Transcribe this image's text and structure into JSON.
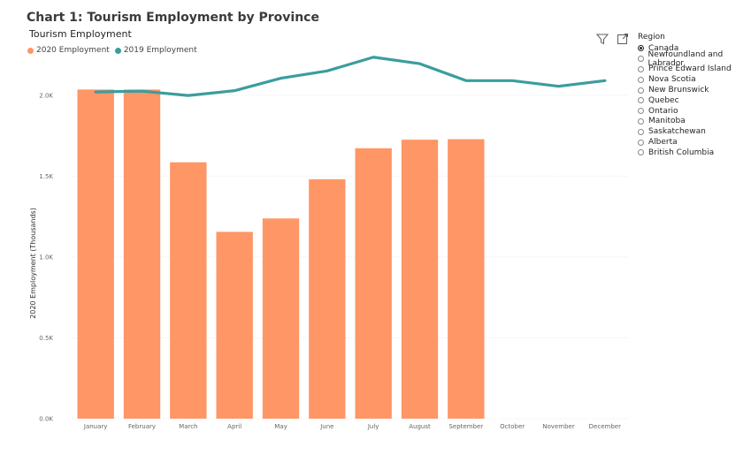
{
  "page": {
    "title": "Chart 1: Tourism Employment by Province"
  },
  "visual": {
    "title": "Tourism Employment"
  },
  "legend": {
    "items": [
      {
        "label": "2020 Employment",
        "color": "#fe9666"
      },
      {
        "label": "2019 Employment",
        "color": "#3b9d9d"
      }
    ]
  },
  "toolbar": {
    "icons": [
      "filter-icon",
      "focus-mode-icon"
    ]
  },
  "slicer": {
    "title": "Region",
    "items": [
      {
        "label": "Canada",
        "checked": true
      },
      {
        "label": "Newfoundland and Labrador",
        "checked": false
      },
      {
        "label": "Prince Edward Island",
        "checked": false
      },
      {
        "label": "Nova Scotia",
        "checked": false
      },
      {
        "label": "New Brunswick",
        "checked": false
      },
      {
        "label": "Quebec",
        "checked": false
      },
      {
        "label": "Ontario",
        "checked": false
      },
      {
        "label": "Manitoba",
        "checked": false
      },
      {
        "label": "Saskatchewan",
        "checked": false
      },
      {
        "label": "Alberta",
        "checked": false
      },
      {
        "label": "British Columbia",
        "checked": false
      }
    ]
  },
  "chart_data": {
    "type": "bar",
    "categories": [
      "January",
      "February",
      "March",
      "April",
      "May",
      "June",
      "July",
      "August",
      "September",
      "October",
      "November",
      "December"
    ],
    "series": [
      {
        "name": "2020 Employment",
        "type": "bar",
        "color": "#fe9666",
        "values": [
          2035,
          2035,
          1585,
          1155,
          1238,
          1480,
          1672,
          1725,
          1728,
          null,
          null,
          null
        ]
      },
      {
        "name": "2019 Employment",
        "type": "line",
        "color": "#3b9d9d",
        "values": [
          2020,
          2025,
          1998,
          2028,
          2105,
          2150,
          2235,
          2195,
          2090,
          2090,
          2055,
          2090
        ]
      }
    ],
    "ylabel": "2020 Employment (Thousands)",
    "xlabel": "",
    "ylim": [
      0,
      2250
    ],
    "yticks": [
      {
        "value": 0,
        "label": "0.0K"
      },
      {
        "value": 500,
        "label": "0.5K"
      },
      {
        "value": 1000,
        "label": "1.0K"
      },
      {
        "value": 1500,
        "label": "1.5K"
      },
      {
        "value": 2000,
        "label": "2.0K"
      }
    ],
    "grid": true
  }
}
